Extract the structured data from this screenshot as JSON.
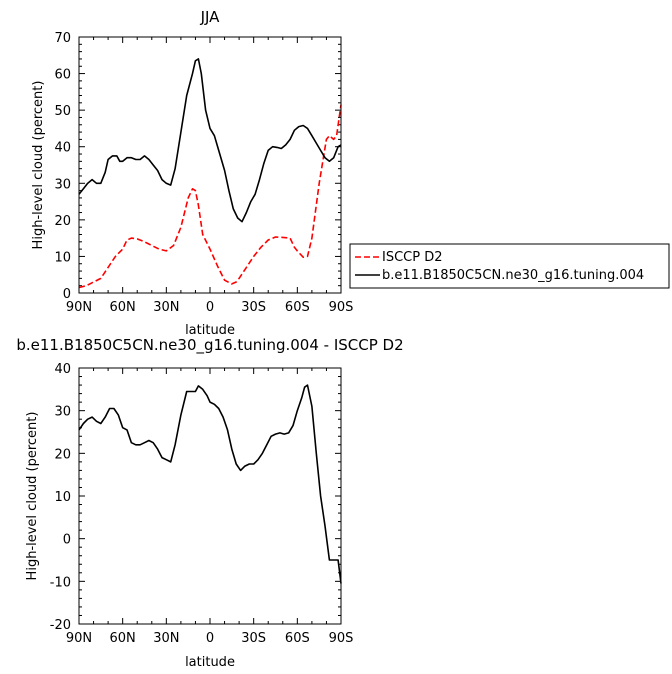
{
  "chart_data": [
    {
      "type": "line",
      "title": "JJA",
      "xlabel": "latitude",
      "ylabel": "High-level cloud (percent)",
      "xlim": [
        90,
        -90
      ],
      "ylim": [
        0,
        70
      ],
      "yticks": [
        0,
        10,
        20,
        30,
        40,
        50,
        60,
        70
      ],
      "xticks": [
        {
          "value": 90,
          "label": "90N"
        },
        {
          "value": 60,
          "label": "60N"
        },
        {
          "value": 30,
          "label": "30N"
        },
        {
          "value": 0,
          "label": "0"
        },
        {
          "value": -30,
          "label": "30S"
        },
        {
          "value": -60,
          "label": "60S"
        },
        {
          "value": -90,
          "label": "90S"
        }
      ],
      "legend": {
        "placement": "right",
        "entries": [
          "ISCCP D2",
          "b.e11.B1850C5CN.ne30_g16.tuning.004"
        ]
      },
      "series": [
        {
          "name": "ISCCP D2",
          "color": "#ff0000",
          "dash": "dashed",
          "x": [
            90,
            85,
            80,
            75,
            70,
            65,
            60,
            57,
            54,
            50,
            45,
            40,
            35,
            30,
            25,
            20,
            15,
            12,
            10,
            8,
            5,
            0,
            -5,
            -10,
            -15,
            -18,
            -20,
            -25,
            -30,
            -35,
            -40,
            -45,
            -50,
            -55,
            -58,
            -60,
            -64,
            -67,
            -70,
            -75,
            -80,
            -82,
            -85,
            -87,
            -90
          ],
          "y": [
            1.5,
            2.0,
            3.0,
            4.0,
            7.0,
            10.0,
            12.0,
            14.5,
            15.0,
            14.8,
            14.0,
            13.0,
            12.0,
            11.5,
            13.0,
            18.0,
            26.0,
            28.5,
            28.0,
            24.0,
            16.0,
            12.0,
            7.5,
            3.5,
            2.5,
            3.0,
            4.0,
            7.0,
            10.0,
            12.5,
            14.5,
            15.3,
            15.2,
            15.0,
            12.5,
            11.5,
            9.8,
            10.0,
            15.0,
            30.0,
            42.0,
            43.0,
            42.0,
            43.0,
            51.5
          ]
        },
        {
          "name": "b.e11.B1850C5CN.ne30_g16.tuning.004",
          "color": "#000000",
          "dash": "solid",
          "x": [
            90,
            87,
            84,
            81,
            78,
            75,
            72,
            70,
            67,
            64,
            62,
            60,
            57,
            54,
            51,
            48,
            45,
            42,
            39,
            36,
            33,
            30,
            27,
            24,
            20,
            16,
            12,
            10,
            8,
            6,
            3,
            0,
            -3,
            -6,
            -10,
            -13,
            -16,
            -19,
            -22,
            -25,
            -28,
            -31,
            -34,
            -37,
            -40,
            -43,
            -46,
            -49,
            -52,
            -55,
            -58,
            -61,
            -64,
            -67,
            -70,
            -73,
            -76,
            -79,
            -82,
            -85,
            -88,
            -90
          ],
          "y": [
            27.0,
            28.5,
            30.0,
            31.0,
            30.0,
            30.0,
            33.0,
            36.5,
            37.5,
            37.5,
            36.0,
            36.0,
            37.0,
            37.0,
            36.5,
            36.5,
            37.5,
            36.5,
            35.0,
            33.5,
            31.0,
            30.0,
            29.5,
            34.0,
            44.0,
            54.0,
            60.0,
            63.5,
            64.0,
            60.0,
            50.0,
            45.0,
            43.0,
            39.0,
            33.5,
            28.0,
            23.0,
            20.5,
            19.5,
            22.0,
            25.0,
            27.0,
            31.0,
            35.5,
            39.0,
            40.0,
            39.8,
            39.5,
            40.5,
            42.0,
            44.5,
            45.5,
            45.8,
            45.0,
            43.0,
            41.0,
            39.0,
            37.0,
            36.0,
            37.0,
            40.0,
            40.5
          ]
        }
      ]
    },
    {
      "type": "line",
      "title": "b.e11.B1850C5CN.ne30_g16.tuning.004 - ISCCP D2",
      "xlabel": "latitude",
      "ylabel": "High-level cloud (percent)",
      "xlim": [
        90,
        -90
      ],
      "ylim": [
        -20,
        40
      ],
      "yticks": [
        -20,
        -10,
        0,
        10,
        20,
        30,
        40
      ],
      "xticks": [
        {
          "value": 90,
          "label": "90N"
        },
        {
          "value": 60,
          "label": "60N"
        },
        {
          "value": 30,
          "label": "30N"
        },
        {
          "value": 0,
          "label": "0"
        },
        {
          "value": -30,
          "label": "30S"
        },
        {
          "value": -60,
          "label": "60S"
        },
        {
          "value": -90,
          "label": "90S"
        }
      ],
      "series": [
        {
          "color": "#000000",
          "dash": "solid",
          "x": [
            90,
            87,
            84,
            81,
            78,
            75,
            72,
            69,
            66,
            63,
            60,
            57,
            54,
            51,
            48,
            45,
            42,
            39,
            36,
            33,
            30,
            27,
            24,
            20,
            16,
            12,
            10,
            8,
            5,
            2,
            0,
            -3,
            -6,
            -9,
            -12,
            -15,
            -18,
            -21,
            -24,
            -27,
            -30,
            -33,
            -36,
            -39,
            -42,
            -45,
            -48,
            -51,
            -54,
            -57,
            -60,
            -63,
            -65,
            -67,
            -70,
            -73,
            -76,
            -79,
            -82,
            -85,
            -88,
            -90
          ],
          "y": [
            25.5,
            27.0,
            28.0,
            28.5,
            27.5,
            27.0,
            28.5,
            30.5,
            30.5,
            29.0,
            26.0,
            25.5,
            22.5,
            22.0,
            22.0,
            22.5,
            23.0,
            22.5,
            21.0,
            19.0,
            18.5,
            18.0,
            22.0,
            29.0,
            34.5,
            34.5,
            34.5,
            35.8,
            35.0,
            33.5,
            32.0,
            31.5,
            30.5,
            28.5,
            25.5,
            21.0,
            17.5,
            16.0,
            17.0,
            17.5,
            17.5,
            18.5,
            20.0,
            22.0,
            24.0,
            24.5,
            24.8,
            24.5,
            24.8,
            26.5,
            30.0,
            33.0,
            35.5,
            36.0,
            31.0,
            20.0,
            10.0,
            3.0,
            -5.0,
            -5.0,
            -5.0,
            -10.5
          ]
        }
      ]
    }
  ]
}
